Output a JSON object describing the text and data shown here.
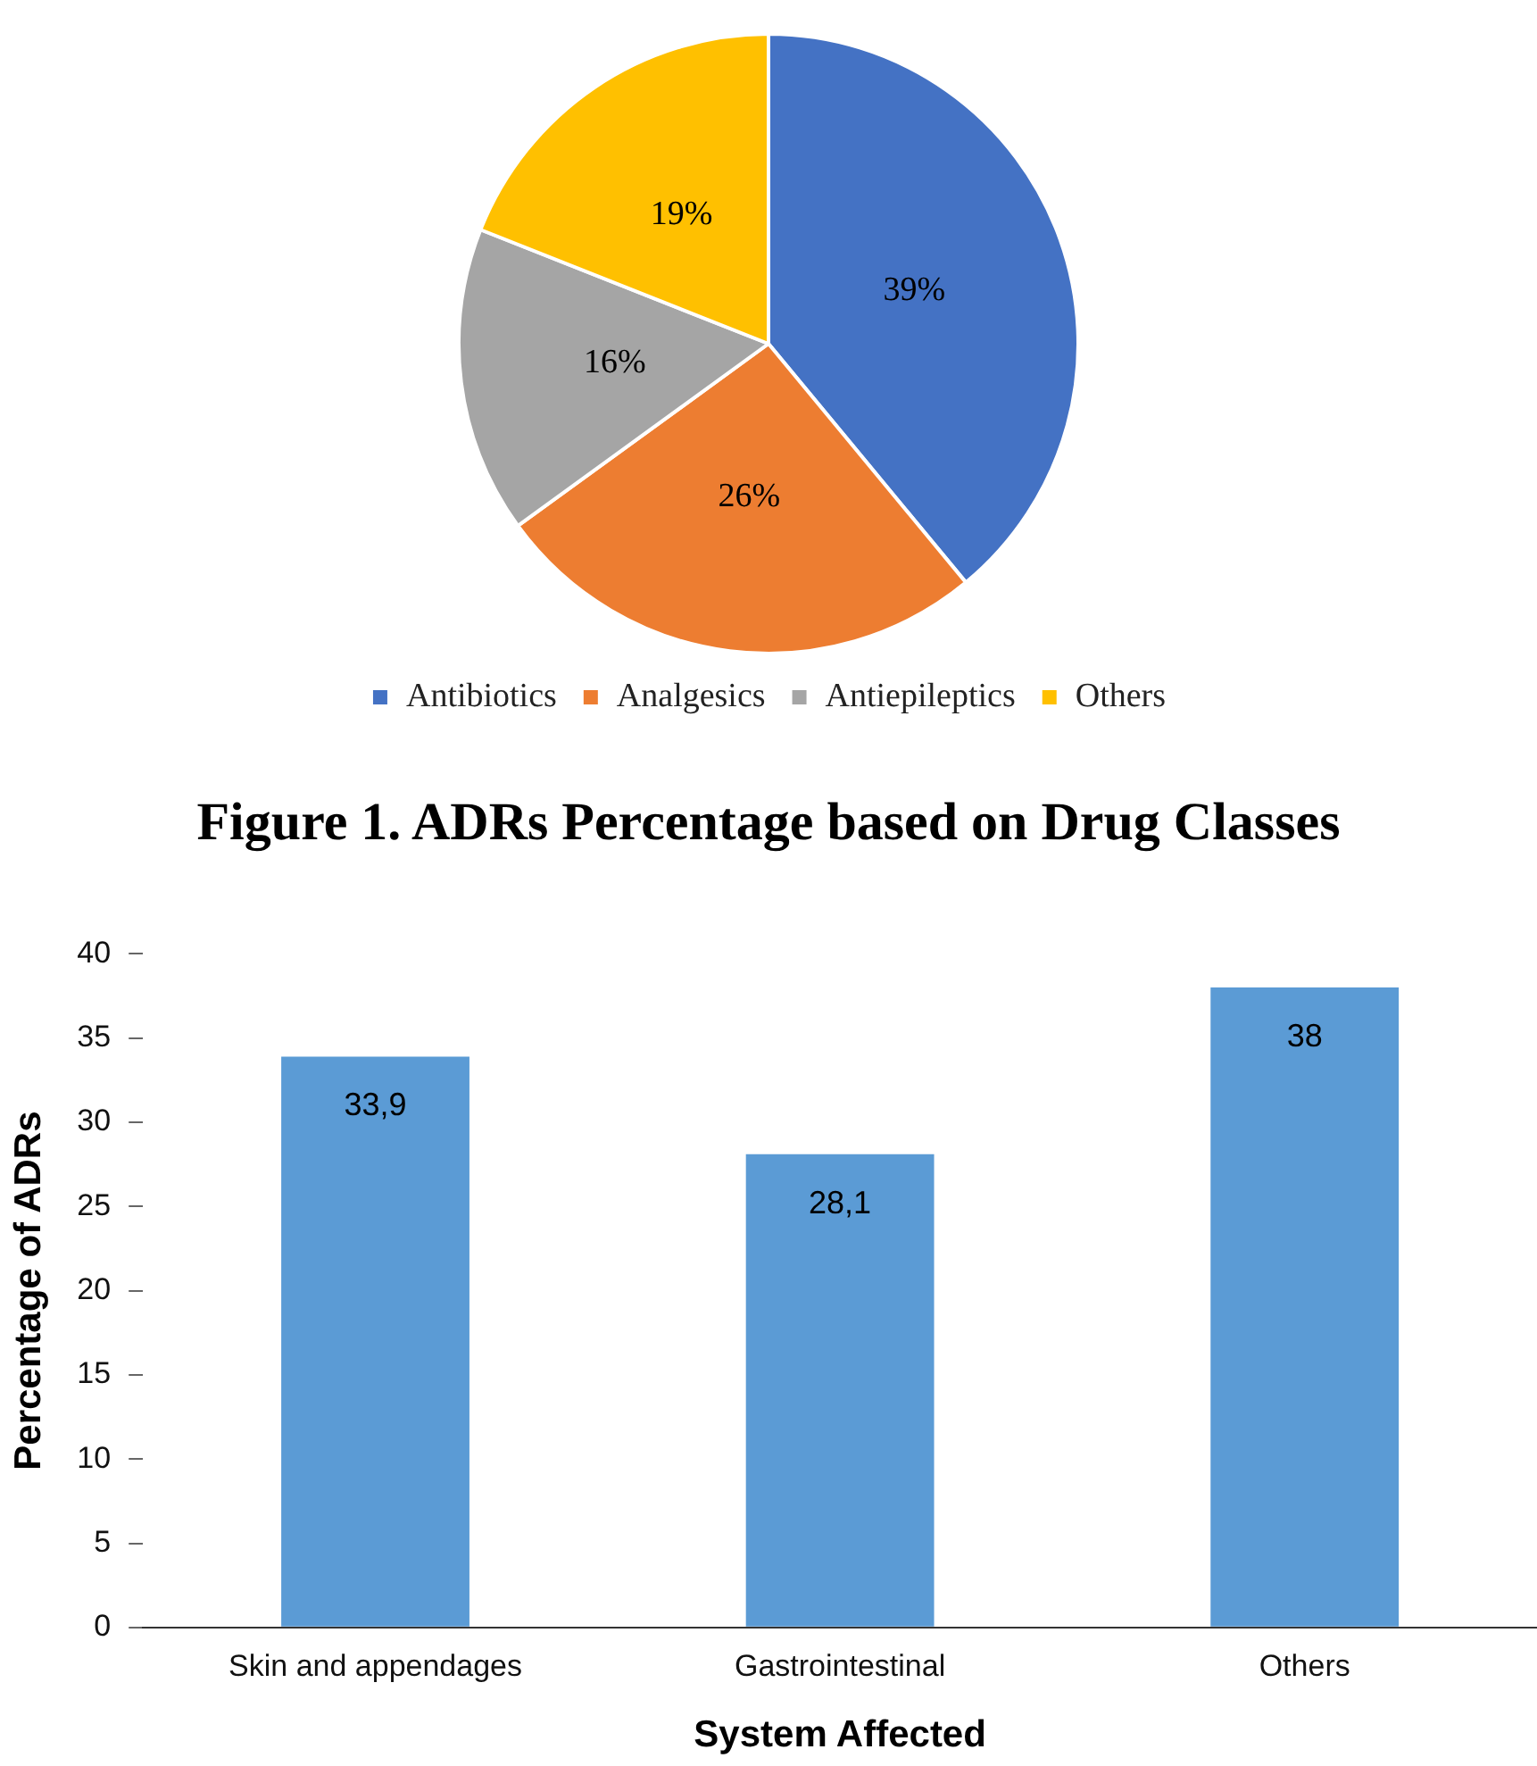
{
  "chart_data": [
    {
      "type": "pie",
      "title": "Figure 1. ADRs Percentage based on Drug Classes",
      "categories": [
        "Antibiotics",
        "Analgesics",
        "Antiepileptics",
        "Others"
      ],
      "values": [
        39,
        26,
        16,
        19
      ],
      "colors": [
        "#4472c4",
        "#ed7d31",
        "#a5a5a5",
        "#ffc000"
      ],
      "value_labels": [
        "39%",
        "26%",
        "16%",
        "19%"
      ],
      "legend": "bottom"
    },
    {
      "type": "bar",
      "xlabel": "System Affected",
      "ylabel": "Percentage of ADRs",
      "categories": [
        "Skin and appendages",
        "Gastrointestinal",
        "Others"
      ],
      "values": [
        33.9,
        28.1,
        38
      ],
      "color": "#5b9bd5",
      "value_labels": [
        "33,9",
        "28,1",
        "38"
      ],
      "ylim": [
        0,
        40
      ],
      "yticks": [
        0,
        5,
        10,
        15,
        20,
        25,
        30,
        35,
        40
      ],
      "grid": false,
      "legend": false
    }
  ]
}
